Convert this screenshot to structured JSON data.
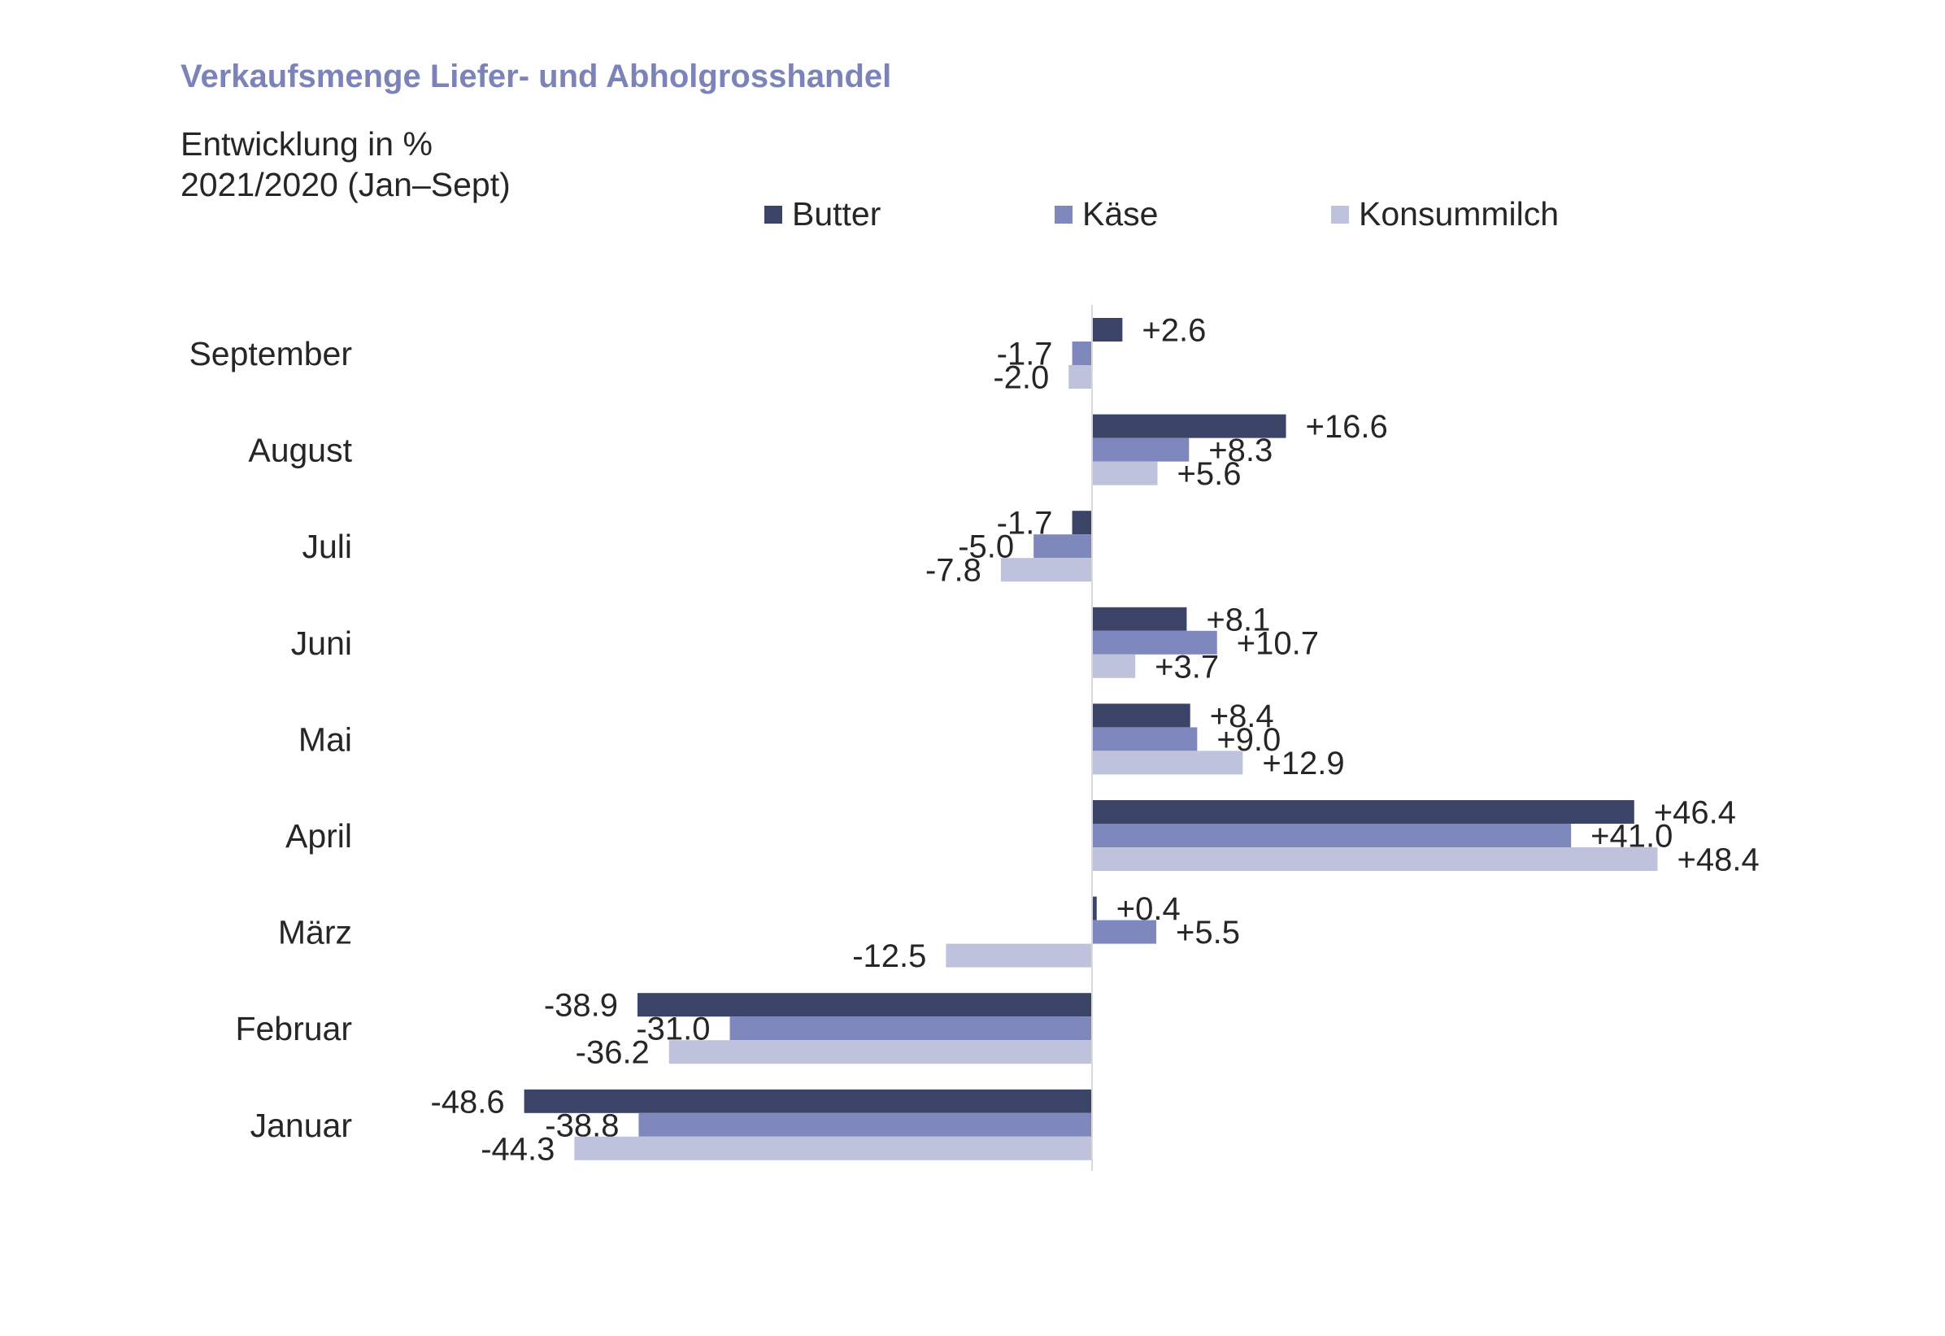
{
  "header": {
    "title": "Verkaufsmenge  Liefer-  und  Abholgrosshandel",
    "subtitle_line1": "Entwicklung in %",
    "subtitle_line2": "2021/2020  (Jan–Sept)"
  },
  "chart_data": {
    "type": "bar",
    "orientation": "horizontal",
    "title": "Verkaufsmenge  Liefer-  und  Abholgrosshandel",
    "subtitle": "Entwicklung in % 2021/2020  (Jan–Sept)",
    "xlabel": "",
    "ylabel": "",
    "xlim": [
      -50,
      50
    ],
    "grid": false,
    "legend_position": "top",
    "categories": [
      "September",
      "August",
      "Juli",
      "Juni",
      "Mai",
      "April",
      "März",
      "Februar",
      "Januar"
    ],
    "series": [
      {
        "name": "Butter",
        "color": "#3b4466",
        "values": [
          2.6,
          16.6,
          -1.7,
          8.1,
          8.4,
          46.4,
          0.4,
          -38.9,
          -48.6
        ],
        "labels": [
          "+2.6",
          "+16.6",
          "-1.7",
          "+8.1",
          "+8.4",
          "+46.4",
          "+0.4",
          "-38.9",
          "-48.6"
        ]
      },
      {
        "name": "Käse",
        "color": "#7f88bd",
        "values": [
          -1.7,
          8.3,
          -5.0,
          10.7,
          9.0,
          41.0,
          5.5,
          -31.0,
          -38.8
        ],
        "labels": [
          "-1.7",
          "+8.3",
          "-5.0",
          "+10.7",
          "+9.0",
          "+41.0",
          "+5.5",
          "-31.0",
          "-38.8"
        ]
      },
      {
        "name": "Konsummilch",
        "color": "#bec2dd",
        "values": [
          -2.0,
          5.6,
          -7.8,
          3.7,
          12.9,
          48.4,
          -12.5,
          -36.2,
          -44.3
        ],
        "labels": [
          "-2.0",
          "+5.6",
          "-7.8",
          "+3.7",
          "+12.9",
          "+48.4",
          "-12.5",
          "-36.2",
          "-44.3"
        ]
      }
    ]
  }
}
